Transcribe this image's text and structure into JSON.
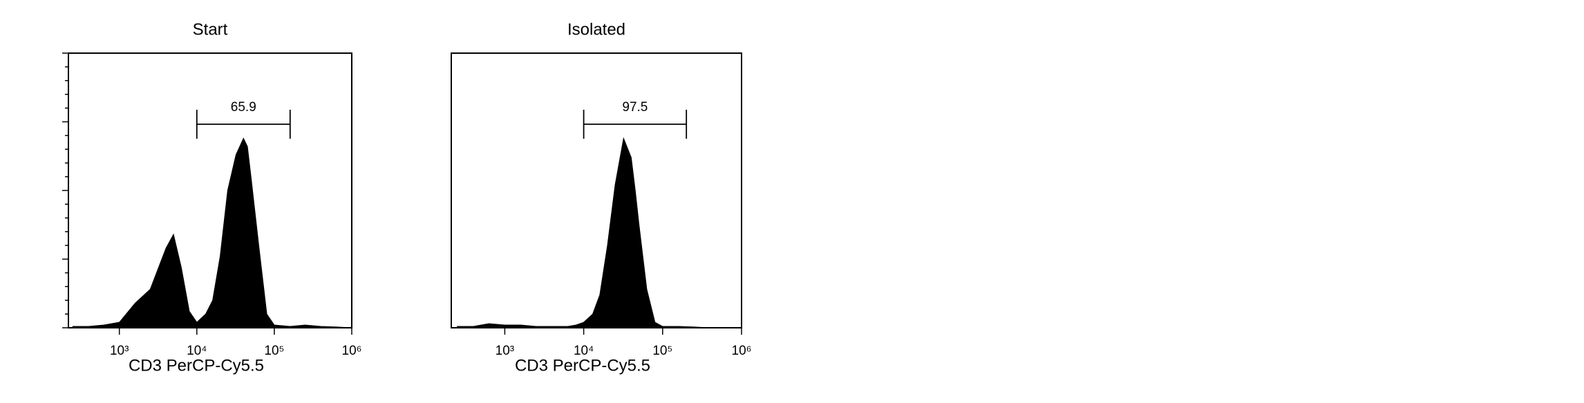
{
  "chart_data": [
    {
      "type": "area",
      "title": "Start",
      "x_label": "CD3 PerCP-Cy5.5",
      "log_x": true,
      "color": "#000000",
      "x": [
        250,
        400,
        630,
        1000,
        1600,
        2500,
        4000,
        5000,
        6300,
        8000,
        10000,
        13000,
        16000,
        20000,
        25000,
        32000,
        40000,
        45000,
        50000,
        63000,
        80000,
        100000,
        160000,
        250000,
        400000,
        630000,
        1000000
      ],
      "values": [
        0.5,
        0.5,
        1,
        2,
        9,
        14,
        29,
        34,
        22,
        6,
        2,
        5,
        10,
        26,
        50,
        63,
        69,
        66,
        55,
        30,
        5,
        1,
        0.5,
        1,
        0.5,
        0.3,
        0
      ],
      "xlim": [
        220,
        1000000
      ],
      "ylim": [
        0,
        100
      ],
      "xticks": [
        {
          "value": 1000,
          "label": "10³"
        },
        {
          "value": 10000,
          "label": "10⁴"
        },
        {
          "value": 100000,
          "label": "10⁵"
        },
        {
          "value": 1000000,
          "label": "10⁶"
        }
      ],
      "gate": {
        "label": 65.9,
        "range": [
          10000,
          160000
        ]
      }
    },
    {
      "type": "area",
      "title": "Isolated",
      "x_label": "CD3 PerCP-Cy5.5",
      "log_x": true,
      "color": "#000000",
      "x": [
        250,
        400,
        630,
        1000,
        1600,
        2500,
        4000,
        5000,
        6300,
        8000,
        10000,
        13000,
        16000,
        20000,
        25000,
        32000,
        40000,
        45000,
        50000,
        63000,
        80000,
        100000,
        160000,
        250000,
        400000,
        630000,
        1000000
      ],
      "values": [
        0.5,
        0.5,
        1.5,
        1,
        1,
        0.5,
        0.5,
        0.5,
        0.5,
        1,
        2,
        5,
        12,
        30,
        52,
        69,
        62,
        50,
        38,
        14,
        2,
        0.5,
        0.5,
        0.3,
        0,
        0,
        0
      ],
      "xlim": [
        210,
        1000000
      ],
      "ylim": [
        0,
        100
      ],
      "xticks": [
        {
          "value": 1000,
          "label": "10³"
        },
        {
          "value": 10000,
          "label": "10⁴"
        },
        {
          "value": 100000,
          "label": "10⁵"
        },
        {
          "value": 1000000,
          "label": "10⁶"
        }
      ],
      "gate": {
        "label": 97.5,
        "range": [
          10000,
          200000
        ]
      }
    }
  ]
}
